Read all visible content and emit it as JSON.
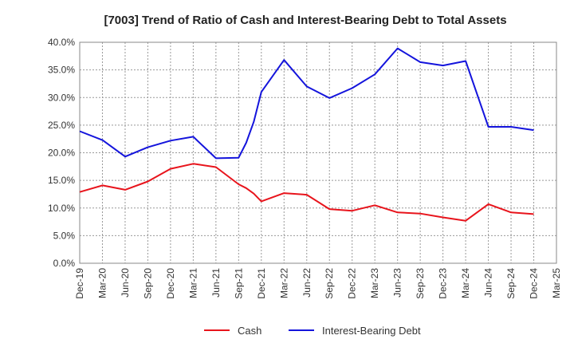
{
  "chart_data": {
    "type": "line",
    "title": "[7003]  Trend of Ratio of Cash and Interest-Bearing Debt to Total Assets",
    "xlabel": "",
    "ylabel": "",
    "ylim": [
      0,
      40
    ],
    "y_ticks": [
      "0.0%",
      "5.0%",
      "10.0%",
      "15.0%",
      "20.0%",
      "25.0%",
      "30.0%",
      "35.0%",
      "40.0%"
    ],
    "x_ticks": [
      "Dec-19",
      "Mar-20",
      "Jun-20",
      "Sep-20",
      "Dec-20",
      "Mar-21",
      "Jun-21",
      "Sep-21",
      "Dec-21",
      "Mar-22",
      "Jun-22",
      "Sep-22",
      "Dec-22",
      "Mar-23",
      "Jun-23",
      "Sep-23",
      "Dec-23",
      "Mar-24",
      "Jun-24",
      "Sep-24",
      "Dec-24",
      "Mar-25"
    ],
    "grid": true,
    "legend_position": "bottom",
    "series": [
      {
        "name": "Cash",
        "color": "#e8141c",
        "points": [
          [
            "Dec-19",
            12.9
          ],
          [
            "Mar-20",
            14.1
          ],
          [
            "Jun-20",
            13.3
          ],
          [
            "Sep-20",
            14.8
          ],
          [
            "Dec-20",
            17.1
          ],
          [
            "Mar-21",
            18.0
          ],
          [
            "Jun-21",
            17.4
          ],
          [
            "Sep-21",
            14.3
          ],
          [
            "Oct-21",
            13.6
          ],
          [
            "Nov-21",
            12.6
          ],
          [
            "Dec-21",
            11.2
          ],
          [
            "Mar-22",
            12.7
          ],
          [
            "Jun-22",
            12.4
          ],
          [
            "Sep-22",
            9.8
          ],
          [
            "Dec-22",
            9.5
          ],
          [
            "Mar-23",
            10.5
          ],
          [
            "Jun-23",
            9.2
          ],
          [
            "Sep-23",
            9.0
          ],
          [
            "Dec-23",
            8.3
          ],
          [
            "Mar-24",
            7.7
          ],
          [
            "Jun-24",
            10.7
          ],
          [
            "Sep-24",
            9.2
          ],
          [
            "Dec-24",
            8.9
          ]
        ]
      },
      {
        "name": "Interest-Bearing Debt",
        "color": "#1414dc",
        "points": [
          [
            "Dec-19",
            23.9
          ],
          [
            "Mar-20",
            22.3
          ],
          [
            "Jun-20",
            19.3
          ],
          [
            "Sep-20",
            21.0
          ],
          [
            "Dec-20",
            22.2
          ],
          [
            "Mar-21",
            22.9
          ],
          [
            "Jun-21",
            19.0
          ],
          [
            "Sep-21",
            19.1
          ],
          [
            "Oct-21",
            21.8
          ],
          [
            "Nov-21",
            25.6
          ],
          [
            "Dec-21",
            31.0
          ],
          [
            "Mar-22",
            36.8
          ],
          [
            "Jun-22",
            32.0
          ],
          [
            "Sep-22",
            29.9
          ],
          [
            "Dec-22",
            31.7
          ],
          [
            "Mar-23",
            34.2
          ],
          [
            "Jun-23",
            38.9
          ],
          [
            "Sep-23",
            36.4
          ],
          [
            "Dec-23",
            35.8
          ],
          [
            "Mar-24",
            36.6
          ],
          [
            "Jun-24",
            24.7
          ],
          [
            "Sep-24",
            24.7
          ],
          [
            "Dec-24",
            24.1
          ]
        ]
      }
    ]
  }
}
